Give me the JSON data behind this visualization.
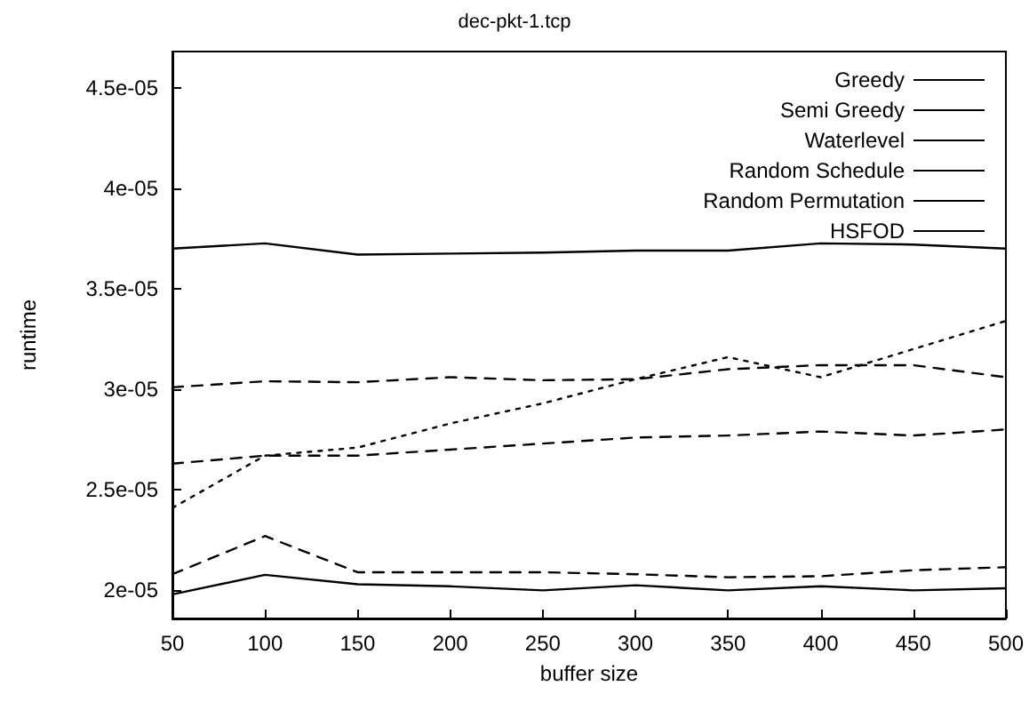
{
  "chart_data": {
    "type": "line",
    "title": "dec-pkt-1.tcp",
    "xlabel": "buffer size",
    "ylabel": "runtime",
    "x": [
      50,
      100,
      150,
      200,
      250,
      300,
      350,
      400,
      450,
      500
    ],
    "xlim": [
      50,
      500
    ],
    "xticks": [
      50,
      100,
      150,
      200,
      250,
      300,
      350,
      400,
      450,
      500
    ],
    "ylim": [
      1.86e-05,
      4.68e-05
    ],
    "yticks": [
      {
        "value": 2e-05,
        "label": "2e-05"
      },
      {
        "value": 2.5e-05,
        "label": "2.5e-05"
      },
      {
        "value": 3e-05,
        "label": "3e-05"
      },
      {
        "value": 3.5e-05,
        "label": "3.5e-05"
      },
      {
        "value": 4e-05,
        "label": "4e-05"
      },
      {
        "value": 4.5e-05,
        "label": "4.5e-05"
      }
    ],
    "grid": false,
    "legend": "top right",
    "marker": "none",
    "series": [
      {
        "name": "Greedy",
        "color": "#000000",
        "line_style": "solid",
        "values": [
          1.98e-05,
          2.077e-05,
          2.03e-05,
          2.02e-05,
          2e-05,
          2.025e-05,
          2e-05,
          2.02e-05,
          2e-05,
          2.01e-05
        ]
      },
      {
        "name": "Semi Greedy",
        "color": "#000000",
        "line_style": "dashed",
        "values": [
          2.08e-05,
          2.27e-05,
          2.09e-05,
          2.09e-05,
          2.09e-05,
          2.08e-05,
          2.065e-05,
          2.07e-05,
          2.1e-05,
          2.115e-05
        ]
      },
      {
        "name": "Waterlevel",
        "color": "#000000",
        "line_style": "solid",
        "values": [
          3.7e-05,
          3.726e-05,
          3.67e-05,
          3.675e-05,
          3.68e-05,
          3.69e-05,
          3.69e-05,
          3.726e-05,
          3.72e-05,
          3.7e-05
        ]
      },
      {
        "name": "Random Schedule",
        "color": "#000000",
        "line_style": "dotted",
        "values": [
          2.41e-05,
          2.67e-05,
          2.71e-05,
          2.83e-05,
          2.93e-05,
          3.05e-05,
          3.16e-05,
          3.06e-05,
          3.2e-05,
          3.34e-05
        ]
      },
      {
        "name": "Random Permutation",
        "color": "#000000",
        "line_style": "dashed",
        "values": [
          3.01e-05,
          3.04e-05,
          3.035e-05,
          3.06e-05,
          3.045e-05,
          3.05e-05,
          3.1e-05,
          3.12e-05,
          3.12e-05,
          3.06e-05
        ]
      },
      {
        "name": "HSFOD",
        "color": "#000000",
        "line_style": "dashed",
        "values": [
          2.63e-05,
          2.67e-05,
          2.67e-05,
          2.7e-05,
          2.73e-05,
          2.76e-05,
          2.77e-05,
          2.79e-05,
          2.77e-05,
          2.8e-05
        ]
      }
    ]
  }
}
